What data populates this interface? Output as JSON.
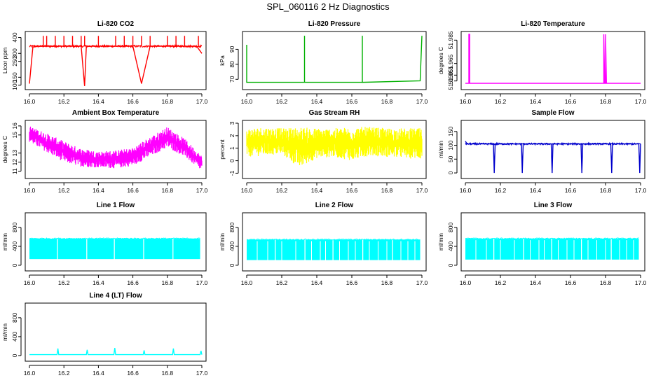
{
  "title": "SPL_060116  2 Hz Diagnostics",
  "colors": {
    "co2": "#ff0000",
    "pressure": "#00b000",
    "temp": "#ff00ff",
    "box": "#ff00ff",
    "rh": "#ffff00",
    "sample": "#0000cc",
    "line": "#00ffff"
  },
  "chart_data": [
    {
      "id": "co2",
      "type": "line",
      "title": "Li-820 CO2",
      "ylabel": "Licor ppm",
      "xlim": [
        16.0,
        17.0
      ],
      "ylim": [
        90,
        420
      ],
      "xticks": [
        "16.0",
        "16.2",
        "16.4",
        "16.6",
        "16.8",
        "17.0"
      ],
      "xtick_values": [
        16.0,
        16.2,
        16.4,
        16.6,
        16.8,
        17.0
      ],
      "yticks": [
        "100",
        "150",
        "250",
        "300",
        "400"
      ],
      "ytick_values": [
        100,
        150,
        250,
        300,
        400
      ],
      "x": [
        16.0,
        16.02,
        16.05,
        16.08,
        16.1,
        16.15,
        16.2,
        16.26,
        16.3,
        16.32,
        16.33,
        16.36,
        16.4,
        16.45,
        16.5,
        16.55,
        16.6,
        16.65,
        16.7,
        16.75,
        16.8,
        16.85,
        16.9,
        16.95,
        16.97,
        17.0
      ],
      "y": [
        110,
        340,
        345,
        345,
        345,
        345,
        345,
        345,
        345,
        95,
        345,
        345,
        345,
        345,
        345,
        345,
        345,
        110,
        345,
        345,
        345,
        345,
        345,
        345,
        345,
        300
      ],
      "spikes_x": [
        16.08,
        16.1,
        16.15,
        16.2,
        16.25,
        16.3,
        16.32,
        16.4,
        16.5,
        16.55,
        16.6,
        16.65,
        16.7,
        16.8,
        16.85,
        16.9,
        16.98
      ],
      "spike_y": 410
    },
    {
      "id": "pressure",
      "type": "line",
      "title": "Li-820 Pressure",
      "ylabel": "kPa",
      "xlim": [
        16.0,
        17.0
      ],
      "ylim": [
        65,
        100
      ],
      "xticks": [
        "16.0",
        "16.2",
        "16.4",
        "16.6",
        "16.8",
        "17.0"
      ],
      "xtick_values": [
        16.0,
        16.2,
        16.4,
        16.6,
        16.8,
        17.0
      ],
      "yticks": [
        "70",
        "80",
        "90"
      ],
      "ytick_values": [
        70,
        80,
        90
      ],
      "x": [
        16.0,
        16.0,
        16.0,
        16.01,
        16.33,
        16.33,
        16.33,
        16.33,
        16.66,
        16.66,
        16.66,
        16.66,
        16.99,
        17.0,
        17.0
      ],
      "y": [
        81,
        93,
        68,
        68,
        68,
        99,
        99,
        68,
        68,
        99,
        99,
        68,
        69,
        99,
        99
      ]
    },
    {
      "id": "temp",
      "type": "line",
      "title": "Li-820 Temperature",
      "ylabel": "degrees C",
      "xlim": [
        16.0,
        17.0
      ],
      "ylim": [
        51.945,
        51.99
      ],
      "xticks": [
        "16.0",
        "16.2",
        "16.4",
        "16.6",
        "16.8",
        "17.0"
      ],
      "xtick_values": [
        16.0,
        16.2,
        16.4,
        16.6,
        16.8,
        17.0
      ],
      "yticks": [
        "51.950",
        "51.955",
        "51.965",
        "51.985"
      ],
      "ytick_values": [
        51.95,
        51.955,
        51.965,
        51.985
      ],
      "x": [
        16.0,
        16.02,
        16.02,
        16.025,
        16.025,
        16.79,
        16.79,
        16.795,
        16.8,
        16.8,
        16.805,
        17.0
      ],
      "y": [
        51.948,
        51.948,
        51.99,
        51.99,
        51.948,
        51.948,
        51.99,
        51.948,
        51.948,
        51.99,
        51.948,
        51.948
      ]
    },
    {
      "id": "box",
      "type": "band",
      "title": "Ambient Box Temperature",
      "ylabel": "degrees C",
      "xlim": [
        16.0,
        17.0
      ],
      "ylim": [
        10.5,
        16.3
      ],
      "xticks": [
        "16.0",
        "16.2",
        "16.4",
        "16.6",
        "16.8",
        "17.0"
      ],
      "xtick_values": [
        16.0,
        16.2,
        16.4,
        16.6,
        16.8,
        17.0
      ],
      "yticks": [
        "11",
        "12",
        "13",
        "15",
        "16"
      ],
      "ytick_values": [
        11,
        12,
        13,
        15,
        16
      ],
      "x": [
        16.0,
        16.1,
        16.2,
        16.3,
        16.4,
        16.5,
        16.6,
        16.7,
        16.8,
        16.9,
        17.0
      ],
      "upper": [
        16.0,
        15.2,
        14.3,
        13.5,
        13.2,
        13.3,
        13.6,
        14.8,
        15.9,
        14.6,
        12.7
      ],
      "lower": [
        14.2,
        13.1,
        12.0,
        11.5,
        11.4,
        11.3,
        11.6,
        12.6,
        13.6,
        12.6,
        11.0
      ]
    },
    {
      "id": "rh",
      "type": "band",
      "title": "Gas Stream RH",
      "ylabel": "percent",
      "xlim": [
        16.0,
        17.0
      ],
      "ylim": [
        -1.2,
        3.0
      ],
      "xticks": [
        "16.0",
        "16.2",
        "16.4",
        "16.6",
        "16.8",
        "17.0"
      ],
      "xtick_values": [
        16.0,
        16.2,
        16.4,
        16.6,
        16.8,
        17.0
      ],
      "yticks": [
        "-1",
        "0",
        "1",
        "2",
        "3"
      ],
      "ytick_values": [
        -1,
        0,
        1,
        2,
        3
      ],
      "x": [
        16.0,
        16.1,
        16.2,
        16.3,
        16.4,
        16.5,
        16.6,
        16.7,
        16.8,
        16.9,
        17.0
      ],
      "upper": [
        2.6,
        2.7,
        2.6,
        2.7,
        2.6,
        2.6,
        2.7,
        2.7,
        2.6,
        2.6,
        2.6
      ],
      "lower": [
        0.3,
        0.4,
        0.5,
        -0.6,
        0.2,
        0.3,
        0.0,
        0.4,
        0.3,
        0.2,
        0.1
      ]
    },
    {
      "id": "sample",
      "type": "line",
      "title": "Sample Flow",
      "ylabel": "ml/min",
      "xlim": [
        16.0,
        17.0
      ],
      "ylim": [
        -10,
        180
      ],
      "xticks": [
        "16.0",
        "16.2",
        "16.4",
        "16.6",
        "16.8",
        "17.0"
      ],
      "xtick_values": [
        16.0,
        16.2,
        16.4,
        16.6,
        16.8,
        17.0
      ],
      "yticks": [
        "0",
        "50",
        "100",
        "150"
      ],
      "ytick_values": [
        0,
        50,
        100,
        150
      ],
      "x": [
        16.0,
        16.01,
        16.16,
        16.165,
        16.17,
        16.32,
        16.325,
        16.33,
        16.49,
        16.495,
        16.5,
        16.66,
        16.665,
        16.67,
        16.83,
        16.835,
        16.84,
        16.99,
        16.995,
        17.0
      ],
      "y": [
        115,
        105,
        105,
        0,
        105,
        105,
        0,
        105,
        105,
        0,
        105,
        105,
        0,
        105,
        105,
        0,
        105,
        105,
        0,
        105
      ]
    },
    {
      "id": "line1",
      "type": "bars",
      "title": "Line 1 Flow",
      "ylabel": "ml/min",
      "xlim": [
        16.0,
        17.0
      ],
      "ylim": [
        -60,
        1050
      ],
      "xticks": [
        "16.0",
        "16.2",
        "16.4",
        "16.6",
        "16.8",
        "17.0"
      ],
      "xtick_values": [
        16.0,
        16.2,
        16.4,
        16.6,
        16.8,
        17.0
      ],
      "yticks": [
        "0",
        "400",
        "800"
      ],
      "ytick_values": [
        0,
        400,
        800
      ],
      "segments": [
        [
          16.0,
          16.16
        ],
        [
          16.165,
          16.33
        ],
        [
          16.335,
          16.49
        ],
        [
          16.495,
          16.66
        ],
        [
          16.665,
          16.83
        ],
        [
          16.835,
          16.99
        ]
      ],
      "top": 560,
      "bottom": 130
    },
    {
      "id": "line2",
      "type": "bars",
      "title": "Line 2 Flow",
      "ylabel": "ml/min",
      "xlim": [
        16.0,
        17.0
      ],
      "ylim": [
        -60,
        1050
      ],
      "xticks": [
        "16.0",
        "16.2",
        "16.4",
        "16.6",
        "16.8",
        "17.0"
      ],
      "xtick_values": [
        16.0,
        16.2,
        16.4,
        16.6,
        16.8,
        17.0
      ],
      "yticks": [
        "0",
        "400",
        "800"
      ],
      "ytick_values": [
        0,
        400,
        800
      ],
      "segments": [
        [
          16.0,
          16.16
        ],
        [
          16.165,
          16.33
        ],
        [
          16.335,
          16.49
        ],
        [
          16.495,
          16.66
        ],
        [
          16.665,
          16.83
        ],
        [
          16.835,
          16.99
        ]
      ],
      "gaps": [
        16.06,
        16.12,
        16.2,
        16.28,
        16.37,
        16.42,
        16.45,
        16.53,
        16.58,
        16.62,
        16.7,
        16.75,
        16.8,
        16.88,
        16.92,
        16.96
      ],
      "top": 540,
      "bottom": 110
    },
    {
      "id": "line3",
      "type": "bars",
      "title": "Line 3 Flow",
      "ylabel": "ml/min",
      "xlim": [
        16.0,
        17.0
      ],
      "ylim": [
        -60,
        1050
      ],
      "xticks": [
        "16.0",
        "16.2",
        "16.4",
        "16.6",
        "16.8",
        "17.0"
      ],
      "xtick_values": [
        16.0,
        16.2,
        16.4,
        16.6,
        16.8,
        17.0
      ],
      "yticks": [
        "0",
        "400",
        "800"
      ],
      "ytick_values": [
        0,
        400,
        800
      ],
      "segments": [
        [
          16.0,
          16.16
        ],
        [
          16.165,
          16.33
        ],
        [
          16.335,
          16.49
        ],
        [
          16.495,
          16.66
        ],
        [
          16.665,
          16.83
        ],
        [
          16.835,
          16.99
        ]
      ],
      "gaps": [
        16.06,
        16.12,
        16.2,
        16.28,
        16.37,
        16.42,
        16.45,
        16.53,
        16.58,
        16.62,
        16.7,
        16.75,
        16.8,
        16.88,
        16.92,
        16.96
      ],
      "top": 560,
      "bottom": 120
    },
    {
      "id": "line4",
      "type": "line",
      "title": "Line 4 (LT) Flow",
      "ylabel": "ml/min",
      "xlim": [
        16.0,
        17.0
      ],
      "ylim": [
        -60,
        1050
      ],
      "xticks": [
        "16.0",
        "16.2",
        "16.4",
        "16.6",
        "16.8",
        "17.0"
      ],
      "xtick_values": [
        16.0,
        16.2,
        16.4,
        16.6,
        16.8,
        17.0
      ],
      "yticks": [
        "0",
        "400",
        "800"
      ],
      "ytick_values": [
        0,
        400,
        800
      ],
      "x": [
        16.0,
        16.16,
        16.165,
        16.17,
        16.33,
        16.335,
        16.34,
        16.49,
        16.495,
        16.5,
        16.66,
        16.665,
        16.67,
        16.83,
        16.835,
        16.84,
        16.99,
        16.995,
        17.0
      ],
      "y": [
        20,
        20,
        150,
        20,
        20,
        120,
        20,
        20,
        160,
        20,
        20,
        110,
        20,
        20,
        150,
        20,
        20,
        100,
        20
      ]
    }
  ]
}
